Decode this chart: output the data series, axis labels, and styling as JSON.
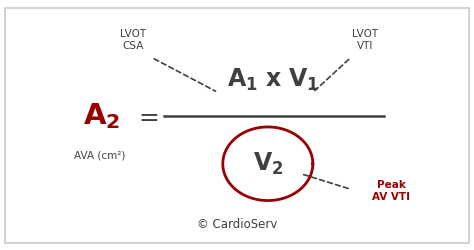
{
  "bg_color": "#ffffff",
  "border_color": "#cccccc",
  "dark_color": "#404040",
  "red_color": "#990000",
  "copyright": "© CardioServ",
  "label_lvot_csa": "LVOT\nCSA",
  "label_lvot_vti": "LVOT\nVTI",
  "label_peak_av_vti": "Peak\nAV VTI",
  "label_ava": "AVA (cm²)",
  "figsize": [
    4.74,
    2.5
  ],
  "dpi": 100
}
